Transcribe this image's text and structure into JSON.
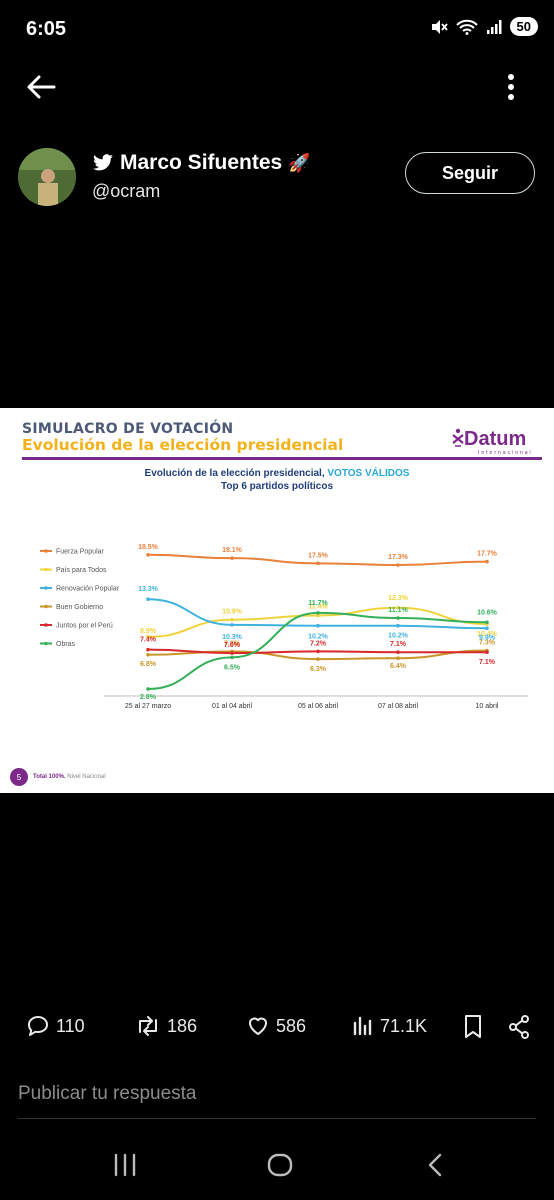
{
  "status_bar": {
    "time": "6:05",
    "battery": "50"
  },
  "post": {
    "author_name": "Marco Sifuentes",
    "author_handle": "@ocram",
    "author_emoji": "🚀",
    "follow_label": "Seguir"
  },
  "slide": {
    "title": "SIMULACRO DE VOTACIÓN",
    "subtitle": "Evolución de la elección presidencial",
    "logo": "Datum",
    "logo_sub": "Internacional",
    "chart_title_prefix": "Evolución de la elección presidencial, ",
    "chart_title_highlight": "VOTOS VÁLIDOS",
    "chart_subtitle": "Top 6 partidos políticos",
    "page_number": "5",
    "footnote_bold": "Total 100%.",
    "footnote_rest": "Nivel Nacional"
  },
  "chart_data": {
    "type": "line",
    "categories": [
      "25 al 27 marzo",
      "01 al 04 abril",
      "05 al 06 abril",
      "07 al 08 abril",
      "10 abril"
    ],
    "series": [
      {
        "name": "Fuerza Popular",
        "color": "#e9813a",
        "values": [
          18.5,
          18.1,
          17.5,
          17.3,
          17.7
        ],
        "labels": [
          "18.5%",
          "18.1%",
          "17.5%",
          "17.3%",
          "17.7%"
        ]
      },
      {
        "name": "País para Todos",
        "color": "#f0d33a",
        "values": [
          8.9,
          10.9,
          11.4,
          12.3,
          10.4
        ],
        "labels": [
          "8.9%",
          "10.9%",
          "11.4%",
          "12.3%",
          "10.4%"
        ]
      },
      {
        "name": "Renovación Popular",
        "color": "#3fb3e0",
        "values": [
          13.3,
          10.3,
          10.2,
          10.2,
          9.9
        ],
        "labels": [
          "13.3%",
          "10.3%",
          "10.2%",
          "10.2%",
          "9.9%"
        ]
      },
      {
        "name": "Buen Gobierno",
        "color": "#c9962a",
        "values": [
          6.8,
          7.2,
          6.3,
          6.4,
          7.3
        ],
        "labels": [
          "6.8%",
          "7.2%",
          "6.3%",
          "6.4%",
          "7.3%"
        ]
      },
      {
        "name": "Juntos por el Perú",
        "color": "#d8282a",
        "values": [
          7.4,
          7.0,
          7.2,
          7.1,
          7.1
        ],
        "labels": [
          "7.4%",
          "7.0%",
          "7.2%",
          "7.1%",
          "7.1%"
        ]
      },
      {
        "name": "Obras",
        "color": "#34b05a",
        "values": [
          2.8,
          6.5,
          11.7,
          11.1,
          10.6
        ],
        "labels": [
          "2.8%",
          "6.5%",
          "11.7%",
          "11.1%",
          "10.6%"
        ]
      }
    ]
  },
  "actions": {
    "replies": "110",
    "reposts": "186",
    "likes": "586",
    "views": "71.1K"
  },
  "reply_placeholder": "Publicar tu respuesta"
}
